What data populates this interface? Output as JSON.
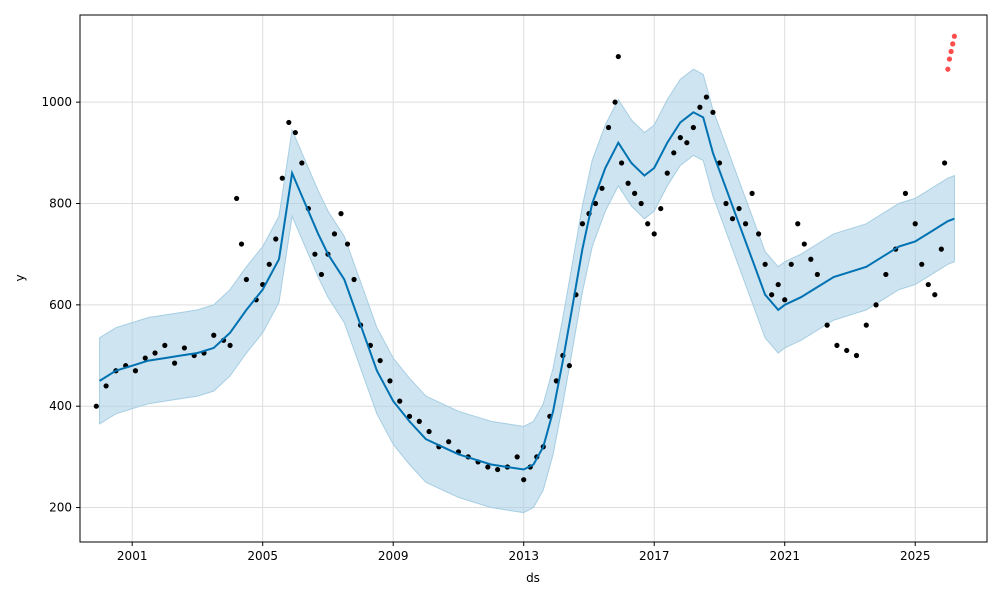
{
  "chart_data": {
    "type": "line",
    "xlabel": "ds",
    "ylabel": "y",
    "grid": true,
    "xlim": [
      1999.4,
      2027.2
    ],
    "ylim": [
      132,
      1172
    ],
    "x_ticks": [
      2001,
      2005,
      2009,
      2013,
      2017,
      2021,
      2025
    ],
    "x_tick_labels": [
      "2001",
      "2005",
      "2009",
      "2013",
      "2017",
      "2021",
      "2025"
    ],
    "y_ticks": [
      200,
      400,
      600,
      800,
      1000
    ],
    "y_tick_labels": [
      "200",
      "400",
      "600",
      "800",
      "1000"
    ],
    "colors": {
      "observed": "#000000",
      "forecast": "#0072B2",
      "interval": "#A6CEE3",
      "highlight": "#FF0000",
      "grid": "#dddddd"
    },
    "series": [
      {
        "role": "forecast",
        "x": [
          2000.0,
          2000.5,
          2001.0,
          2001.5,
          2002.0,
          2002.5,
          2003.0,
          2003.5,
          2004.0,
          2004.5,
          2005.0,
          2005.5,
          2005.9,
          2006.3,
          2006.7,
          2007.0,
          2007.5,
          2008.0,
          2008.5,
          2009.0,
          2009.5,
          2010.0,
          2010.5,
          2011.0,
          2011.5,
          2012.0,
          2012.5,
          2013.0,
          2013.3,
          2013.6,
          2013.9,
          2014.2,
          2014.5,
          2014.8,
          2015.1,
          2015.5,
          2015.9,
          2016.3,
          2016.7,
          2017.0,
          2017.4,
          2017.8,
          2018.2,
          2018.5,
          2018.8,
          2019.2,
          2019.6,
          2020.0,
          2020.4,
          2020.8,
          2021.0,
          2021.5,
          2022.0,
          2022.5,
          2023.0,
          2023.5,
          2024.0,
          2024.5,
          2025.0,
          2025.5,
          2026.0,
          2026.2
        ],
        "y": [
          450,
          470,
          480,
          490,
          495,
          500,
          505,
          515,
          545,
          590,
          630,
          690,
          860,
          800,
          740,
          700,
          650,
          560,
          470,
          410,
          370,
          335,
          320,
          305,
          295,
          285,
          280,
          275,
          285,
          320,
          390,
          490,
          600,
          710,
          800,
          870,
          920,
          880,
          855,
          870,
          920,
          960,
          980,
          970,
          900,
          830,
          760,
          690,
          620,
          590,
          600,
          615,
          635,
          655,
          665,
          675,
          695,
          715,
          725,
          745,
          765,
          770
        ]
      },
      {
        "role": "interval_upper",
        "x": [
          2000.0,
          2000.5,
          2001.0,
          2001.5,
          2002.0,
          2002.5,
          2003.0,
          2003.5,
          2004.0,
          2004.5,
          2005.0,
          2005.5,
          2005.9,
          2006.3,
          2006.7,
          2007.0,
          2007.5,
          2008.0,
          2008.5,
          2009.0,
          2009.5,
          2010.0,
          2010.5,
          2011.0,
          2011.5,
          2012.0,
          2012.5,
          2013.0,
          2013.3,
          2013.6,
          2013.9,
          2014.2,
          2014.5,
          2014.8,
          2015.1,
          2015.5,
          2015.9,
          2016.3,
          2016.7,
          2017.0,
          2017.4,
          2017.8,
          2018.2,
          2018.5,
          2018.8,
          2019.2,
          2019.6,
          2020.0,
          2020.4,
          2020.8,
          2021.0,
          2021.5,
          2022.0,
          2022.5,
          2023.0,
          2023.5,
          2024.0,
          2024.5,
          2025.0,
          2025.5,
          2026.0,
          2026.2
        ],
        "y": [
          535,
          555,
          565,
          575,
          580,
          585,
          590,
          600,
          630,
          675,
          715,
          775,
          945,
          885,
          825,
          785,
          735,
          645,
          555,
          495,
          455,
          420,
          405,
          390,
          380,
          370,
          365,
          360,
          370,
          405,
          475,
          575,
          685,
          795,
          885,
          955,
          1005,
          965,
          940,
          955,
          1005,
          1045,
          1065,
          1055,
          985,
          915,
          845,
          775,
          705,
          675,
          685,
          700,
          720,
          740,
          750,
          760,
          780,
          800,
          810,
          830,
          850,
          855
        ]
      },
      {
        "role": "interval_lower",
        "x": [
          2000.0,
          2000.5,
          2001.0,
          2001.5,
          2002.0,
          2002.5,
          2003.0,
          2003.5,
          2004.0,
          2004.5,
          2005.0,
          2005.5,
          2005.9,
          2006.3,
          2006.7,
          2007.0,
          2007.5,
          2008.0,
          2008.5,
          2009.0,
          2009.5,
          2010.0,
          2010.5,
          2011.0,
          2011.5,
          2012.0,
          2012.5,
          2013.0,
          2013.3,
          2013.6,
          2013.9,
          2014.2,
          2014.5,
          2014.8,
          2015.1,
          2015.5,
          2015.9,
          2016.3,
          2016.7,
          2017.0,
          2017.4,
          2017.8,
          2018.2,
          2018.5,
          2018.8,
          2019.2,
          2019.6,
          2020.0,
          2020.4,
          2020.8,
          2021.0,
          2021.5,
          2022.0,
          2022.5,
          2023.0,
          2023.5,
          2024.0,
          2024.5,
          2025.0,
          2025.5,
          2026.0,
          2026.2
        ],
        "y": [
          365,
          385,
          395,
          405,
          410,
          415,
          420,
          430,
          460,
          505,
          545,
          605,
          775,
          715,
          655,
          615,
          565,
          475,
          385,
          325,
          285,
          250,
          235,
          220,
          210,
          200,
          195,
          190,
          200,
          235,
          305,
          405,
          515,
          625,
          715,
          785,
          835,
          795,
          770,
          785,
          835,
          875,
          895,
          885,
          815,
          745,
          675,
          605,
          535,
          505,
          515,
          530,
          550,
          570,
          580,
          590,
          610,
          630,
          640,
          660,
          680,
          685
        ]
      },
      {
        "role": "observed",
        "x": [
          1999.9,
          2000.2,
          2000.5,
          2000.8,
          2001.1,
          2001.4,
          2001.7,
          2002.0,
          2002.3,
          2002.6,
          2002.9,
          2003.2,
          2003.5,
          2003.8,
          2004.0,
          2004.2,
          2004.35,
          2004.5,
          2004.8,
          2005.0,
          2005.2,
          2005.4,
          2005.6,
          2005.8,
          2006.0,
          2006.2,
          2006.4,
          2006.6,
          2006.8,
          2007.0,
          2007.2,
          2007.4,
          2007.6,
          2007.8,
          2008.0,
          2008.3,
          2008.6,
          2008.9,
          2009.2,
          2009.5,
          2009.8,
          2010.1,
          2010.4,
          2010.7,
          2011.0,
          2011.3,
          2011.6,
          2011.9,
          2012.2,
          2012.5,
          2012.8,
          2013.0,
          2013.2,
          2013.4,
          2013.6,
          2013.8,
          2014.0,
          2014.2,
          2014.4,
          2014.6,
          2014.8,
          2015.0,
          2015.2,
          2015.4,
          2015.6,
          2015.8,
          2015.9,
          2016.0,
          2016.2,
          2016.4,
          2016.6,
          2016.8,
          2017.0,
          2017.2,
          2017.4,
          2017.6,
          2017.8,
          2018.0,
          2018.2,
          2018.4,
          2018.6,
          2018.8,
          2019.0,
          2019.2,
          2019.4,
          2019.6,
          2019.8,
          2020.0,
          2020.2,
          2020.4,
          2020.6,
          2020.8,
          2021.0,
          2021.2,
          2021.4,
          2021.6,
          2021.8,
          2022.0,
          2022.3,
          2022.6,
          2022.9,
          2023.2,
          2023.5,
          2023.8,
          2024.1,
          2024.4,
          2024.7,
          2025.0,
          2025.2,
          2025.4,
          2025.6,
          2025.8,
          2025.9
        ],
        "y": [
          400,
          440,
          470,
          480,
          470,
          495,
          505,
          520,
          485,
          515,
          500,
          505,
          540,
          530,
          520,
          810,
          720,
          650,
          610,
          640,
          680,
          730,
          850,
          960,
          940,
          880,
          790,
          700,
          660,
          700,
          740,
          780,
          720,
          650,
          560,
          520,
          490,
          450,
          410,
          380,
          370,
          350,
          320,
          330,
          310,
          300,
          290,
          280,
          275,
          280,
          300,
          255,
          280,
          300,
          320,
          380,
          450,
          500,
          480,
          620,
          760,
          780,
          800,
          830,
          950,
          1000,
          1090,
          880,
          840,
          820,
          800,
          760,
          740,
          790,
          860,
          900,
          930,
          920,
          950,
          990,
          1010,
          980,
          880,
          800,
          770,
          790,
          760,
          820,
          740,
          680,
          620,
          640,
          610,
          680,
          760,
          720,
          690,
          660,
          560,
          520,
          510,
          500,
          560,
          600,
          660,
          710,
          820,
          760,
          680,
          640,
          620,
          710,
          880
        ]
      },
      {
        "role": "highlight",
        "x": [
          2026.0,
          2026.05,
          2026.1,
          2026.15,
          2026.2
        ],
        "y": [
          1065,
          1085,
          1100,
          1115,
          1130
        ]
      }
    ]
  }
}
